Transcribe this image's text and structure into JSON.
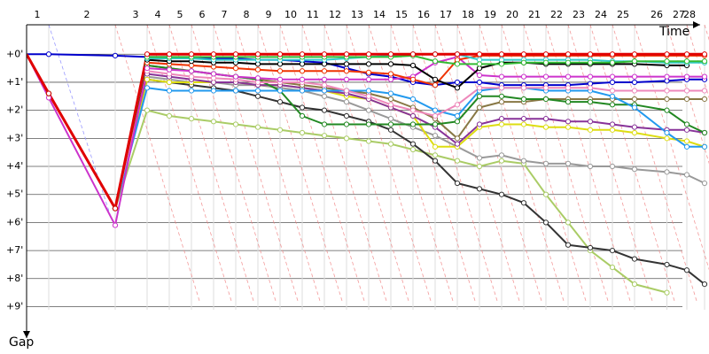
{
  "chart_data": {
    "type": "gap",
    "x_label": "Time",
    "y_label": "Gap",
    "x": [
      0,
      1.0,
      4.0,
      5.44,
      6.44,
      7.44,
      8.44,
      9.44,
      10.44,
      11.44,
      12.44,
      13.44,
      14.44,
      15.44,
      16.44,
      17.44,
      18.44,
      19.44,
      20.44,
      21.44,
      22.44,
      23.44,
      24.44,
      25.44,
      26.44,
      27.44,
      28.9,
      29.8,
      30.6
    ],
    "xlim": [
      0,
      30.8
    ],
    "xticks": [
      {
        "value": 0.48,
        "label": "1"
      },
      {
        "value": 2.72,
        "label": "2"
      },
      {
        "value": 4.92,
        "label": "3"
      },
      {
        "value": 5.92,
        "label": "4"
      },
      {
        "value": 6.92,
        "label": "5"
      },
      {
        "value": 7.92,
        "label": "6"
      },
      {
        "value": 8.92,
        "label": "7"
      },
      {
        "value": 9.92,
        "label": "8"
      },
      {
        "value": 10.92,
        "label": "9"
      },
      {
        "value": 11.92,
        "label": "10"
      },
      {
        "value": 12.92,
        "label": "11"
      },
      {
        "value": 13.92,
        "label": "12"
      },
      {
        "value": 14.92,
        "label": "13"
      },
      {
        "value": 15.92,
        "label": "14"
      },
      {
        "value": 16.92,
        "label": "15"
      },
      {
        "value": 17.92,
        "label": "16"
      },
      {
        "value": 18.92,
        "label": "17"
      },
      {
        "value": 19.92,
        "label": "18"
      },
      {
        "value": 20.92,
        "label": "19"
      },
      {
        "value": 21.92,
        "label": "20"
      },
      {
        "value": 22.92,
        "label": "21"
      },
      {
        "value": 23.92,
        "label": "22"
      },
      {
        "value": 24.92,
        "label": "23"
      },
      {
        "value": 25.92,
        "label": "24"
      },
      {
        "value": 26.92,
        "label": "25"
      },
      {
        "value": 28.44,
        "label": "26"
      },
      {
        "value": 29.44,
        "label": "27"
      },
      {
        "value": 29.92,
        "label": "28"
      }
    ],
    "ylim": [
      -1.05,
      10.5
    ],
    "yticks": [
      {
        "value": 0,
        "label": "+0'"
      },
      {
        "value": 1,
        "label": "+1'"
      },
      {
        "value": 2,
        "label": "+2'"
      },
      {
        "value": 3,
        "label": "+3'"
      },
      {
        "value": 4,
        "label": "+4'"
      },
      {
        "value": 5,
        "label": "+5'"
      },
      {
        "value": 6,
        "label": "+6'"
      },
      {
        "value": 7,
        "label": "+7'"
      },
      {
        "value": 8,
        "label": "+8'"
      },
      {
        "value": 9,
        "label": "+9'"
      }
    ],
    "grid": true,
    "series": [
      {
        "color": "#0000cc",
        "values": [
          0,
          0,
          0.05,
          0.1,
          0.1,
          0.12,
          0.15,
          0.15,
          0.2,
          0.2,
          0.25,
          0.3,
          0.5,
          0.7,
          0.8,
          1.0,
          1.1,
          1.0,
          1.0,
          1.1,
          1.1,
          1.1,
          1.1,
          1.05,
          1.0,
          1.0,
          0.95,
          0.9,
          0.9
        ]
      },
      {
        "color": "#aacc66",
        "values": [
          0,
          1.4,
          5.5,
          2.0,
          2.2,
          2.3,
          2.4,
          2.5,
          2.6,
          2.7,
          2.8,
          2.9,
          3.0,
          3.1,
          3.2,
          3.4,
          3.6,
          3.8,
          4.0,
          3.8,
          3.9,
          5.0,
          6.0,
          7.0,
          7.6,
          8.2,
          8.5,
          null,
          null
        ]
      },
      {
        "color": "#333333",
        "values": [
          0,
          1.4,
          5.5,
          0.9,
          1.0,
          1.1,
          1.2,
          1.3,
          1.5,
          1.7,
          1.9,
          2.0,
          2.2,
          2.4,
          2.7,
          3.2,
          3.8,
          4.6,
          4.8,
          5.0,
          5.3,
          6.0,
          6.8,
          6.9,
          7.0,
          7.3,
          7.5,
          7.7,
          8.2
        ]
      },
      {
        "color": "#999999",
        "values": [
          0,
          1.4,
          5.5,
          0.8,
          0.9,
          1.0,
          1.0,
          1.1,
          1.1,
          1.2,
          1.3,
          1.5,
          1.7,
          2.0,
          2.3,
          2.6,
          2.9,
          3.3,
          3.7,
          3.6,
          3.8,
          3.9,
          3.9,
          4.0,
          4.0,
          4.1,
          4.2,
          4.3,
          4.6
        ]
      },
      {
        "color": "#dddd11",
        "values": [
          0,
          1.4,
          5.5,
          0.9,
          1.0,
          1.0,
          1.0,
          1.0,
          1.1,
          1.1,
          1.2,
          1.3,
          1.5,
          1.6,
          1.9,
          2.2,
          3.3,
          3.3,
          2.6,
          2.5,
          2.5,
          2.6,
          2.6,
          2.7,
          2.7,
          2.8,
          3.0,
          3.1,
          3.3
        ]
      },
      {
        "color": "#883399",
        "values": [
          0,
          1.4,
          5.5,
          0.7,
          0.8,
          0.9,
          1.0,
          1.0,
          1.1,
          1.1,
          1.2,
          1.3,
          1.4,
          1.6,
          1.9,
          2.2,
          2.6,
          3.2,
          2.5,
          2.3,
          2.3,
          2.3,
          2.4,
          2.4,
          2.5,
          2.6,
          2.7,
          2.7,
          2.8
        ]
      },
      {
        "color": "#887744",
        "values": [
          0,
          1.4,
          5.5,
          0.4,
          0.5,
          0.6,
          0.7,
          0.8,
          0.9,
          1.0,
          1.1,
          1.2,
          1.3,
          1.4,
          1.6,
          1.9,
          2.3,
          3.0,
          1.9,
          1.7,
          1.7,
          1.6,
          1.6,
          1.6,
          1.6,
          1.6,
          1.6,
          1.6,
          1.6
        ]
      },
      {
        "color": "#228822",
        "values": [
          0,
          1.4,
          5.5,
          0.4,
          0.5,
          0.6,
          0.7,
          0.8,
          0.9,
          1.3,
          2.2,
          2.5,
          2.5,
          2.5,
          2.5,
          2.5,
          2.5,
          2.4,
          1.5,
          1.5,
          1.6,
          1.6,
          1.7,
          1.7,
          1.8,
          1.8,
          2.0,
          2.5,
          2.8
        ]
      },
      {
        "color": "#2299ee",
        "values": [
          0,
          1.4,
          5.5,
          1.2,
          1.3,
          1.3,
          1.3,
          1.3,
          1.3,
          1.3,
          1.3,
          1.3,
          1.3,
          1.3,
          1.4,
          1.6,
          2.0,
          2.2,
          1.3,
          1.2,
          1.2,
          1.3,
          1.3,
          1.3,
          1.5,
          1.9,
          2.8,
          3.3,
          3.3
        ]
      },
      {
        "color": "#ee88bb",
        "values": [
          0,
          1.4,
          5.5,
          0.6,
          0.7,
          0.8,
          0.85,
          0.9,
          1.0,
          1.0,
          1.0,
          1.1,
          1.3,
          1.5,
          1.8,
          2.0,
          2.2,
          1.8,
          1.2,
          1.2,
          1.2,
          1.2,
          1.2,
          1.2,
          1.3,
          1.3,
          1.3,
          1.3,
          1.3
        ]
      },
      {
        "color": "#cc33cc",
        "values": [
          0,
          1.55,
          6.1,
          0.5,
          0.55,
          0.6,
          0.7,
          0.8,
          0.85,
          0.9,
          0.9,
          0.9,
          0.9,
          0.9,
          0.9,
          0.8,
          0.3,
          0.1,
          0.75,
          0.8,
          0.8,
          0.8,
          0.8,
          0.8,
          0.8,
          0.8,
          0.8,
          0.8,
          0.8
        ]
      },
      {
        "color": "#ee3300",
        "values": [
          0,
          1.4,
          5.5,
          0.3,
          0.35,
          0.4,
          0.45,
          0.5,
          0.55,
          0.6,
          0.6,
          0.6,
          0.6,
          0.65,
          0.7,
          0.9,
          1.1,
          0.2,
          0.05,
          0.05,
          0.05,
          0.05,
          0.05,
          0.05,
          0.05,
          0.05,
          0.05,
          0.05,
          0.05
        ]
      },
      {
        "color": "#000000",
        "values": [
          0,
          1.4,
          5.5,
          0.2,
          0.25,
          0.25,
          0.3,
          0.3,
          0.35,
          0.35,
          0.35,
          0.35,
          0.35,
          0.35,
          0.35,
          0.4,
          0.9,
          1.2,
          0.5,
          0.3,
          0.3,
          0.35,
          0.35,
          0.35,
          0.35,
          0.35,
          0.4,
          0.4,
          null
        ]
      },
      {
        "color": "#33cccc",
        "values": [
          0,
          1.4,
          5.5,
          0.15,
          0.15,
          0.15,
          0.2,
          0.2,
          0.2,
          0.2,
          0.2,
          0.2,
          0.15,
          0.1,
          0.05,
          0,
          0,
          0,
          0.2,
          0.2,
          0.2,
          0.2,
          0.2,
          0.2,
          0.25,
          0.25,
          0.3,
          0.3,
          0.3
        ]
      },
      {
        "color": "#33bb33",
        "values": [
          0,
          1.4,
          5.5,
          0.1,
          0.1,
          0.1,
          0.1,
          0.1,
          0.1,
          0.1,
          0.1,
          0.1,
          0.1,
          0.1,
          0.1,
          0.05,
          0.25,
          0.35,
          0.35,
          0.35,
          0.3,
          0.3,
          0.3,
          0.3,
          0.3,
          0.25,
          0.25,
          0.25,
          0.25
        ]
      },
      {
        "color": "#e00000",
        "values": [
          0,
          1.4,
          5.5,
          0,
          0,
          0,
          0,
          0,
          0,
          0,
          0,
          0,
          0,
          0,
          0,
          0,
          0,
          0,
          0,
          0,
          0,
          0,
          0,
          0,
          0,
          0,
          0,
          0,
          0
        ]
      }
    ]
  }
}
